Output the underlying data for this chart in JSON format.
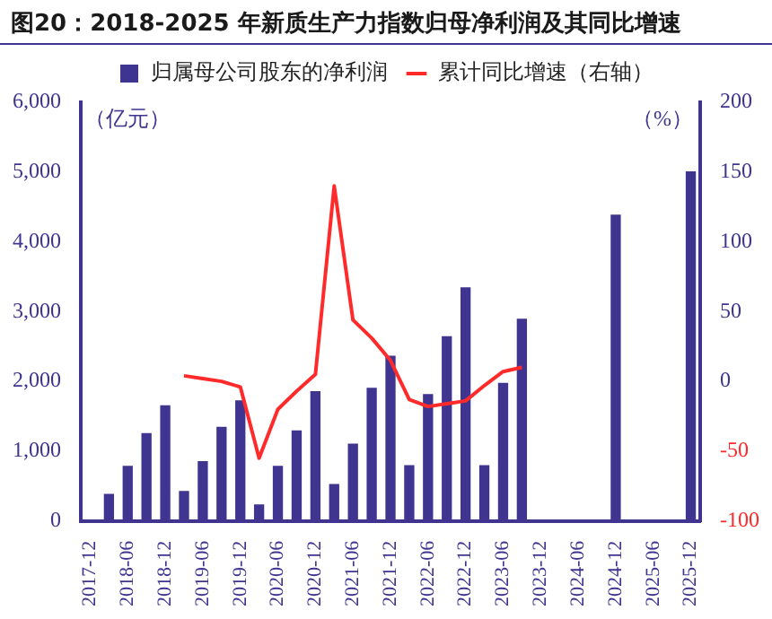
{
  "chart_data": {
    "type": "bar",
    "title": "图20：2018-2025 年新质生产力指数归母净利润及其同比增速",
    "ylabel": "（亿元）",
    "y2label": "（%）",
    "categories": [
      "2017-12",
      null,
      "2018-06",
      null,
      "2018-12",
      null,
      "2019-06",
      null,
      "2019-12",
      null,
      "2020-06",
      null,
      "2020-12",
      null,
      "2021-06",
      null,
      "2021-12",
      null,
      "2022-06",
      null,
      "2022-12",
      null,
      "2023-06",
      null,
      "2023-12",
      null,
      "2024-06",
      null,
      "2024-12",
      null,
      "2025-06",
      null,
      "2025-12"
    ],
    "series": [
      {
        "name": "归属母公司股东的净利润",
        "color": "#3f3590",
        "values": [
          null,
          380,
          780,
          1250,
          1650,
          420,
          850,
          1340,
          1720,
          230,
          780,
          1290,
          1850,
          520,
          1100,
          1900,
          2360,
          790,
          1810,
          2640,
          3340,
          790,
          1970,
          2890,
          null,
          null,
          null,
          null,
          4380,
          null,
          null,
          null,
          5000
        ]
      },
      {
        "name": "累计同比增速（右轴）",
        "type": "line",
        "axis": "y2",
        "color": "#ff2a2a",
        "values": [
          null,
          null,
          null,
          null,
          null,
          4,
          2,
          0,
          -4,
          -55,
          -20,
          -7,
          5,
          140,
          44,
          31,
          15,
          -13,
          -18,
          -16,
          -14,
          -3,
          7,
          10,
          null,
          null,
          null,
          null,
          null,
          null,
          null,
          null,
          null
        ]
      }
    ],
    "ylim": [
      0,
      6000
    ],
    "yticks": [
      {
        "value": 0,
        "label": "0"
      },
      {
        "value": 1000,
        "label": "1,000"
      },
      {
        "value": 2000,
        "label": "2,000"
      },
      {
        "value": 3000,
        "label": "3,000"
      },
      {
        "value": 4000,
        "label": "4,000"
      },
      {
        "value": 5000,
        "label": "5,000"
      },
      {
        "value": 6000,
        "label": "6,000"
      }
    ],
    "y2lim": [
      -100,
      200
    ],
    "y2ticks": [
      -100,
      -50,
      0,
      50,
      100,
      150,
      200
    ],
    "legend": "top",
    "grid": false
  }
}
